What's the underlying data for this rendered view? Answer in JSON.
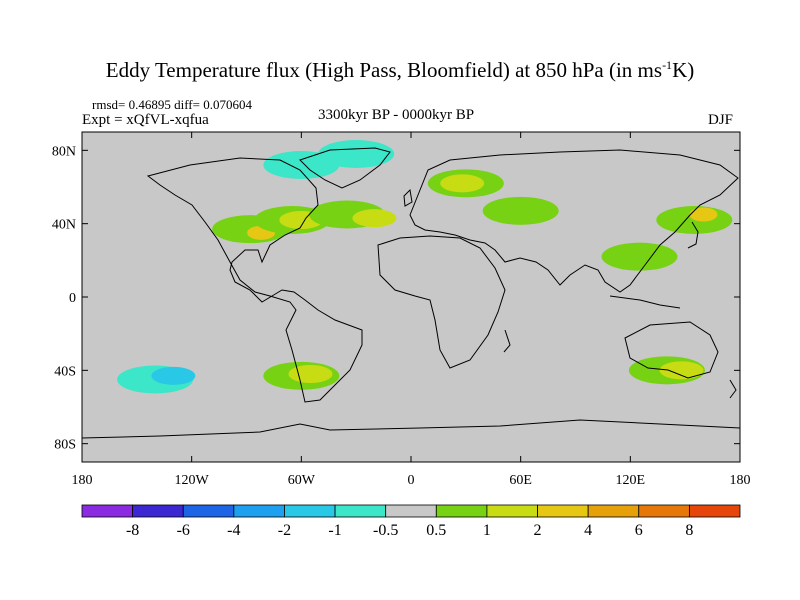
{
  "title": {
    "main": "Eddy Temperature flux (High Pass, Bloomfield) at 850 hPa (in ms",
    "sup": "-1",
    "end": "K)"
  },
  "stats": "rmsd= 0.46895  diff= 0.070604",
  "experiment": "Expt = xQfVL-xqfua",
  "period": "3300kyr BP - 0000kyr BP",
  "season": "DJF",
  "map": {
    "projection": "cylindrical equidistant",
    "lon_range": [
      -180,
      180
    ],
    "lat_range": [
      -90,
      90
    ],
    "background_color": "#c8c8c8",
    "lat_ticks": [
      {
        "value": 80,
        "label": "80N"
      },
      {
        "value": 40,
        "label": "40N"
      },
      {
        "value": 0,
        "label": "0"
      },
      {
        "value": -40,
        "label": "40S"
      },
      {
        "value": -80,
        "label": "80S"
      }
    ],
    "lon_ticks": [
      {
        "value": -180,
        "label": "180"
      },
      {
        "value": -120,
        "label": "120W"
      },
      {
        "value": -60,
        "label": "60W"
      },
      {
        "value": 0,
        "label": "0"
      },
      {
        "value": 60,
        "label": "60E"
      },
      {
        "value": 120,
        "label": "120E"
      },
      {
        "value": 180,
        "label": "180"
      }
    ]
  },
  "colorbar": {
    "colors": [
      "#8a2be2",
      "#3c28d2",
      "#1e64e6",
      "#1ea0f0",
      "#28c8e6",
      "#3ce6c8",
      "#c8c8c8",
      "#78d214",
      "#c8dc14",
      "#e6c814",
      "#e6a00a",
      "#e6780a",
      "#e6460a"
    ],
    "labels": [
      "-8",
      "-6",
      "-4",
      "-2",
      "-1",
      "-0.5",
      "0.5",
      "1",
      "2",
      "4",
      "6",
      "8"
    ]
  },
  "anomalies": [
    {
      "lon": -88,
      "lat": 37,
      "level": 1
    },
    {
      "lon": -82,
      "lat": 35,
      "level": 3
    },
    {
      "lon": -65,
      "lat": 42,
      "level": 1
    },
    {
      "lon": -60,
      "lat": 42,
      "level": 2
    },
    {
      "lon": -35,
      "lat": 45,
      "level": 1
    },
    {
      "lon": -20,
      "lat": 43,
      "level": 2
    },
    {
      "lon": 30,
      "lat": 62,
      "level": 1
    },
    {
      "lon": 28,
      "lat": 62,
      "level": 2
    },
    {
      "lon": 155,
      "lat": 42,
      "level": 1
    },
    {
      "lon": 160,
      "lat": 45,
      "level": 3
    },
    {
      "lon": 125,
      "lat": 22,
      "level": 1
    },
    {
      "lon": -60,
      "lat": -43,
      "level": 1
    },
    {
      "lon": -55,
      "lat": -42,
      "level": 2
    },
    {
      "lon": 140,
      "lat": -40,
      "level": 1
    },
    {
      "lon": 148,
      "lat": -40,
      "level": 2
    },
    {
      "lon": -140,
      "lat": -45,
      "level": -1
    },
    {
      "lon": -130,
      "lat": -43,
      "level": -2
    },
    {
      "lon": -30,
      "lat": 78,
      "level": -1
    },
    {
      "lon": -60,
      "lat": 72,
      "level": -1
    },
    {
      "lon": 60,
      "lat": 47,
      "level": 1
    }
  ]
}
